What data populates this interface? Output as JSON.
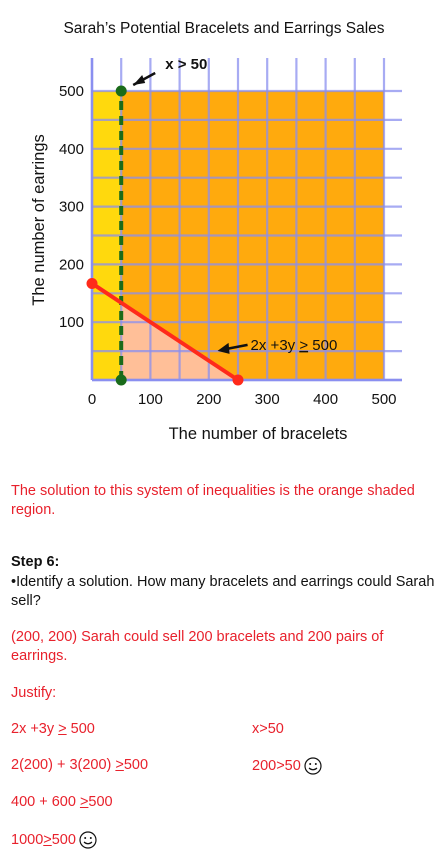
{
  "chart_data": {
    "type": "scatter",
    "title": "Sarah’s Potential Bracelets and Earrings Sales",
    "xlabel": "The number of bracelets",
    "ylabel": "The number of earrings",
    "xlim": [
      0,
      500
    ],
    "ylim": [
      0,
      500
    ],
    "x_ticks": [
      "0",
      "100",
      "200",
      "300",
      "400",
      "500"
    ],
    "y_ticks": [
      "100",
      "200",
      "300",
      "400",
      "500"
    ],
    "grid": true,
    "regions": [
      {
        "label": "orange shaded region",
        "color": "#ffa500",
        "x_range": [
          50,
          500
        ],
        "y_range": [
          0,
          500
        ]
      },
      {
        "label": "yellow region",
        "color": "#ffd700",
        "x_range": [
          0,
          50
        ],
        "y_range": [
          0,
          500
        ]
      },
      {
        "label": "light region",
        "color": "#ffc0a0",
        "polygon": [
          [
            50,
            0
          ],
          [
            50,
            133
          ],
          [
            250,
            0
          ]
        ]
      }
    ],
    "lines": [
      {
        "name": "x > 50",
        "style": "dashed",
        "color": "#1a6b1a",
        "points": [
          [
            50,
            0
          ],
          [
            50,
            500
          ]
        ]
      },
      {
        "name": "2x +3y > 500",
        "style": "solid",
        "color": "#ff2a1a",
        "points": [
          [
            0,
            167
          ],
          [
            250,
            0
          ]
        ]
      }
    ],
    "points": [
      {
        "x": 50,
        "y": 500,
        "color": "#1a6b1a"
      },
      {
        "x": 50,
        "y": 0,
        "color": "#1a6b1a"
      },
      {
        "x": 0,
        "y": 167,
        "color": "#ff2a1a"
      },
      {
        "x": 250,
        "y": 0,
        "color": "#ff2a1a"
      }
    ],
    "annotations": [
      {
        "text": "x > 50",
        "target": [
          50,
          500
        ]
      },
      {
        "text": "2x +3y > 500",
        "target": [
          215,
          40
        ]
      }
    ]
  },
  "solution_text": "The solution to this system of inequalities is the orange shaded region.",
  "step_heading": "Step 6:",
  "step_prompt": "•Identify a solution.  How many bracelets and earrings could Sarah sell?",
  "answer_text": "(200, 200)  Sarah could sell 200 bracelets and 200 pairs of earrings.",
  "justify_label": "Justify:",
  "justify": {
    "left_line1_a": "2x +3y ",
    "left_line1_b": ">",
    "left_line1_c": " 500",
    "right_line1": "x>50",
    "left_line2_a": "2(200) + 3(200) ",
    "left_line2_b": ">",
    "left_line2_c": "500",
    "right_line2": "200>50",
    "left_line3_a": "400 + 600 ",
    "left_line3_b": ">",
    "left_line3_c": "500",
    "left_line4_a": "1000",
    "left_line4_b": ">",
    "left_line4_c": "500"
  },
  "colors": {
    "text_red": "#e8212c",
    "orange": "#ffa500",
    "yellow": "#ffd700"
  }
}
